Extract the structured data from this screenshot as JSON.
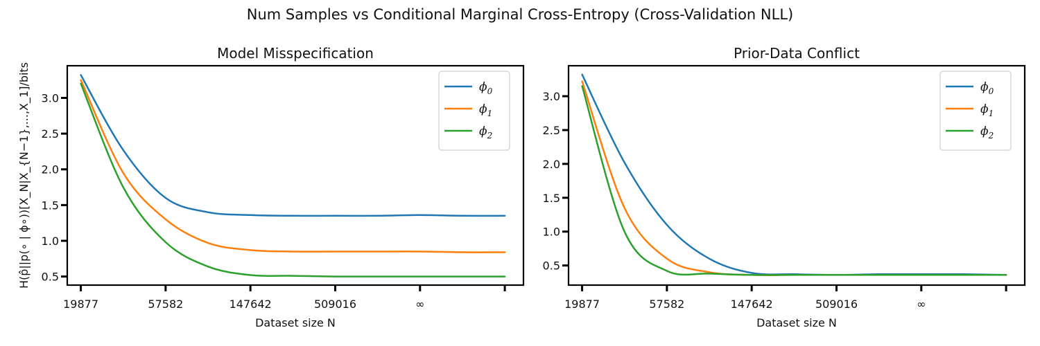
{
  "figure_title": "Num Samples vs Conditional Marginal Cross-Entropy (Cross-Validation NLL)",
  "colors": {
    "phi0": "#1f77b4",
    "phi1": "#ff7f0e",
    "phi2": "#2ca02c"
  },
  "chart_data": [
    {
      "type": "line",
      "title": "Model Misspecification",
      "xlabel": "Dataset size N",
      "ylabel": "H(p̂||p(∘ | ϕ∘))[X_N|X_{N−1},...,X_1]/bits",
      "x_tick_labels": [
        "19877",
        "57582",
        "147642",
        "509016",
        "∞",
        ""
      ],
      "x_positions": [
        0,
        0.5,
        1,
        1.5,
        2,
        2.5,
        3,
        3.5,
        4,
        4.5,
        5
      ],
      "xlim": [
        -0.16,
        5.22
      ],
      "ylim": [
        0.38,
        3.45
      ],
      "y_ticks": [
        0.5,
        1.0,
        1.5,
        2.0,
        2.5,
        3.0
      ],
      "y_tick_labels": [
        "0.5",
        "1.0",
        "1.5",
        "2.0",
        "2.5",
        "3.0"
      ],
      "legend_position": "top-right",
      "series": [
        {
          "name": "ϕ0",
          "color_key": "phi0",
          "values": [
            3.32,
            2.27,
            1.6,
            1.4,
            1.36,
            1.35,
            1.35,
            1.35,
            1.36,
            1.35,
            1.35
          ]
        },
        {
          "name": "ϕ1",
          "color_key": "phi1",
          "values": [
            3.25,
            1.95,
            1.3,
            0.97,
            0.87,
            0.85,
            0.85,
            0.85,
            0.85,
            0.84,
            0.84
          ]
        },
        {
          "name": "ϕ2",
          "color_key": "phi2",
          "values": [
            3.2,
            1.75,
            0.98,
            0.64,
            0.52,
            0.51,
            0.5,
            0.5,
            0.5,
            0.5,
            0.5
          ]
        }
      ]
    },
    {
      "type": "line",
      "title": "Prior-Data Conflict",
      "xlabel": "Dataset size N",
      "ylabel": "",
      "x_tick_labels": [
        "19877",
        "57582",
        "147642",
        "509016",
        "∞",
        ""
      ],
      "x_positions": [
        0,
        0.5,
        1,
        1.5,
        2,
        2.5,
        3,
        3.5,
        4,
        4.5,
        5
      ],
      "xlim": [
        -0.16,
        5.22
      ],
      "ylim": [
        0.21,
        3.45
      ],
      "y_ticks": [
        0.5,
        1.0,
        1.5,
        2.0,
        2.5,
        3.0
      ],
      "y_tick_labels": [
        "0.5",
        "1.0",
        "1.5",
        "2.0",
        "2.5",
        "3.0"
      ],
      "legend_position": "top-right",
      "series": [
        {
          "name": "ϕ0",
          "color_key": "phi0",
          "values": [
            3.32,
            2.02,
            1.1,
            0.6,
            0.39,
            0.37,
            0.36,
            0.37,
            0.37,
            0.37,
            0.36
          ]
        },
        {
          "name": "ϕ1",
          "color_key": "phi1",
          "values": [
            3.22,
            1.35,
            0.6,
            0.4,
            0.36,
            0.36,
            0.36,
            0.36,
            0.36,
            0.36,
            0.36
          ]
        },
        {
          "name": "ϕ2",
          "color_key": "phi2",
          "values": [
            3.15,
            1.0,
            0.42,
            0.38,
            0.36,
            0.36,
            0.36,
            0.36,
            0.36,
            0.36,
            0.36
          ]
        }
      ]
    }
  ]
}
